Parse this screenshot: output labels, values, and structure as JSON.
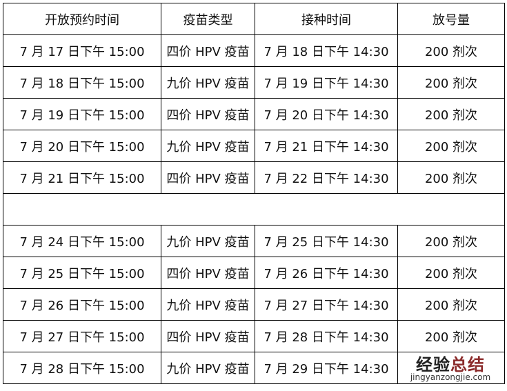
{
  "headers": [
    "开放预约时间",
    "疫苗类型",
    "接种时间",
    "放号量"
  ],
  "rows_top": [
    [
      "7 月 17 日下午 15:00",
      "四价 HPV 疫苗",
      "7 月 18 日下午 14:30",
      "200 剂次"
    ],
    [
      "7 月 18 日下午 15:00",
      "九价 HPV 疫苗",
      "7 月 19 日下午 14:30",
      "200 剂次"
    ],
    [
      "7 月 19 日下午 15:00",
      "四价 HPV 疫苗",
      "7 月 20 日下午 14:30",
      "200 剂次"
    ],
    [
      "7 月 20 日下午 15:00",
      "九价 HPV 疫苗",
      "7 月 21 日下午 14:30",
      "200 剂次"
    ],
    [
      "7 月 21 日下午 15:00",
      "四价 HPV 疫苗",
      "7 月 22 日下午 14:30",
      "200 剂次"
    ]
  ],
  "rows_bottom": [
    [
      "7 月 24 日下午 15:00",
      "九价 HPV 疫苗",
      "7 月 25 日下午 14:30",
      "200 剂次"
    ],
    [
      "7 月 25 日下午 15:00",
      "四价 HPV 疫苗",
      "7 月 26 日下午 14:30",
      "200 剂次"
    ],
    [
      "7 月 26 日下午 15:00",
      "九价 HPV 疫苗",
      "7 月 27 日下午 14:30",
      "200 剂次"
    ],
    [
      "7 月 27 日下午 15:00",
      "四价 HPV 疫苗",
      "7 月 28 日下午 14:30",
      "200 剂次"
    ],
    [
      "7 月 28 日下午 15:00",
      "九价 HPV 疫苗",
      "7 月 29 日下午 14:30",
      ""
    ]
  ],
  "watermark": {
    "cn_a": "经验",
    "cn_b": "总结",
    "en": "jingyanzongjie.com"
  }
}
